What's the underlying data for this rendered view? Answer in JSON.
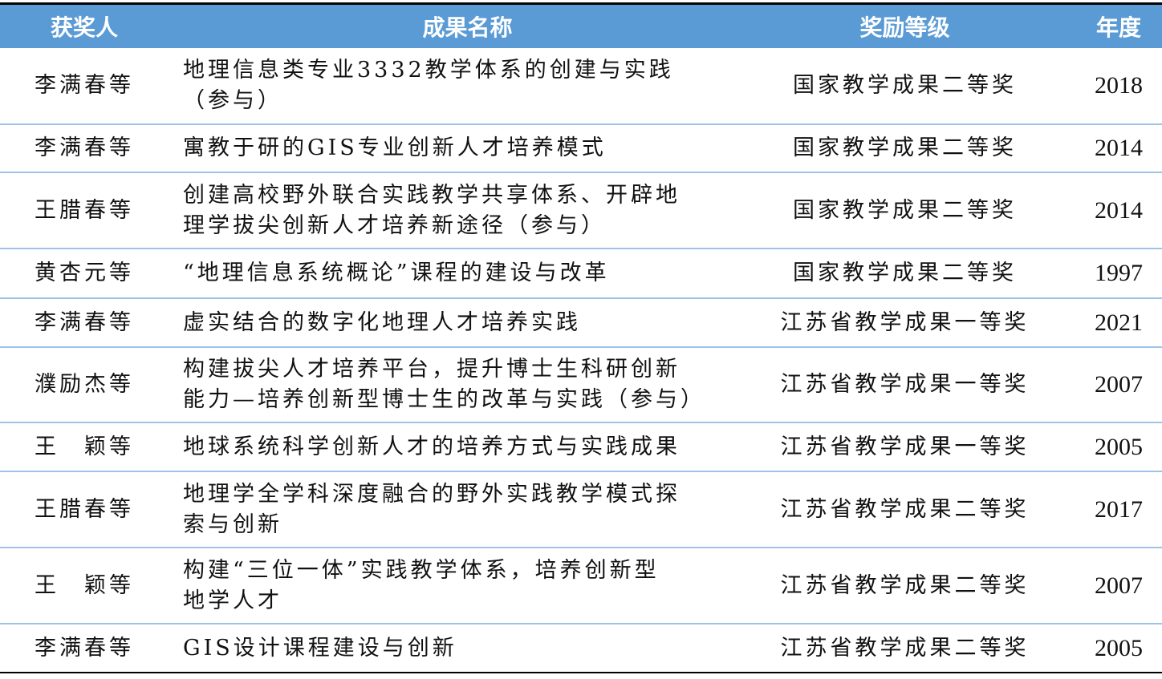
{
  "colors": {
    "header_bg": "#5b9bd5",
    "row_divider": "#9dc3e6"
  },
  "headers": [
    "获奖人",
    "成果名称",
    "奖励等级",
    "年度"
  ],
  "rows": [
    {
      "name": "李满春等",
      "title": "地理信息类专业3332教学体系的创建与实践\n（参与）",
      "award": "国家教学成果二等奖",
      "year": "2018"
    },
    {
      "name": "李满春等",
      "title": "寓教于研的GIS专业创新人才培养模式",
      "award": "国家教学成果二等奖",
      "year": "2014"
    },
    {
      "name": "王腊春等",
      "title": "创建高校野外联合实践教学共享体系、开辟地\n理学拔尖创新人才培养新途径（参与）",
      "award": "国家教学成果二等奖",
      "year": "2014"
    },
    {
      "name": "黄杏元等",
      "title": "“地理信息系统概论”课程的建设与改革",
      "award": "国家教学成果二等奖",
      "year": "1997"
    },
    {
      "name": "李满春等",
      "title": "虚实结合的数字化地理人才培养实践",
      "award": "江苏省教学成果一等奖",
      "year": "2021"
    },
    {
      "name": "濮励杰等",
      "title": "构建拔尖人才培养平台，提升博士生科研创新\n能力—培养创新型博士生的改革与实践（参与）",
      "award": "江苏省教学成果一等奖",
      "year": "2007"
    },
    {
      "name": "王　颖等",
      "title": "地球系统科学创新人才的培养方式与实践成果",
      "award": "江苏省教学成果一等奖",
      "year": "2005"
    },
    {
      "name": "王腊春等",
      "title": "地理学全学科深度融合的野外实践教学模式探\n索与创新",
      "award": "江苏省教学成果二等奖",
      "year": "2017"
    },
    {
      "name": "王　颖等",
      "title": "构建“三位一体”实践教学体系，培养创新型\n地学人才",
      "award": "江苏省教学成果二等奖",
      "year": "2007"
    },
    {
      "name": "李满春等",
      "title": "GIS设计课程建设与创新",
      "award": "江苏省教学成果二等奖",
      "year": "2005"
    }
  ]
}
